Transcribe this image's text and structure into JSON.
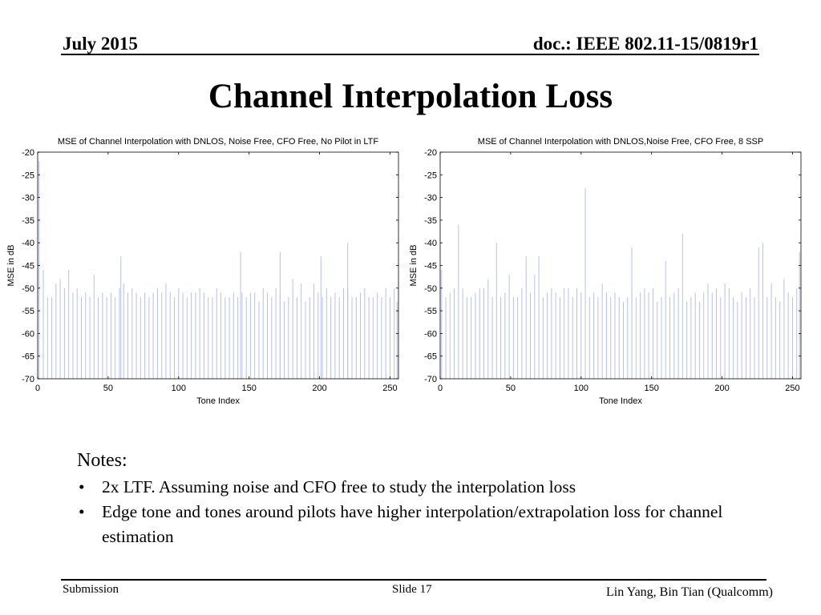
{
  "header": {
    "date": "July 2015",
    "doc": "doc.: IEEE 802.11-15/0819r1"
  },
  "title": "Channel Interpolation Loss",
  "notes": {
    "heading": "Notes:",
    "bullets": [
      "2x LTF.  Assuming noise and CFO free to study the interpolation loss",
      "Edge tone and tones around pilots have higher interpolation/extrapolation loss for channel estimation"
    ]
  },
  "footer": {
    "left": "Submission",
    "center": "Slide 17",
    "right": "Lin Yang, Bin Tian (Qualcomm)"
  },
  "chart_data": [
    {
      "type": "line",
      "title": "MSE of Channel Interpolation with DNLOS, Noise Free, CFO Free, No Pilot in LTF",
      "xlabel": "Tone Index",
      "ylabel": "MSE in dB",
      "xlim": [
        0,
        256
      ],
      "ylim": [
        -70,
        -20
      ],
      "xticks": [
        0,
        50,
        100,
        150,
        200,
        250
      ],
      "yticks": [
        -20,
        -25,
        -30,
        -35,
        -40,
        -45,
        -50,
        -55,
        -60,
        -65,
        -70
      ],
      "line_color": "#b8bff0",
      "baseline": -70,
      "series": [
        {
          "x": [
            1,
            4,
            7,
            10,
            13,
            16,
            19,
            22,
            25,
            28,
            31,
            34,
            37,
            40,
            43,
            46,
            49,
            52,
            55,
            58,
            61,
            64,
            67,
            70,
            73,
            76,
            79,
            82,
            85,
            88,
            91,
            94,
            97,
            100,
            103,
            106,
            109,
            112,
            115,
            118,
            121,
            124,
            127,
            130,
            133,
            136,
            139,
            142,
            145,
            148,
            151,
            154,
            157,
            160,
            163,
            166,
            169,
            172,
            175,
            178,
            181,
            184,
            187,
            190,
            193,
            196,
            199,
            202,
            205,
            208,
            211,
            214,
            217,
            220,
            223,
            226,
            229,
            232,
            235,
            238,
            241,
            244,
            247,
            250,
            253,
            255
          ],
          "y": [
            -22,
            -46,
            -52,
            -52,
            -49,
            -48,
            -50,
            -46,
            -51,
            -50,
            -52,
            -51,
            -52,
            -47,
            -52,
            -51,
            -52,
            -51,
            -52,
            -50,
            -49,
            -51,
            -50,
            -51,
            -52,
            -51,
            -52,
            -51,
            -50,
            -51,
            -49,
            -51,
            -52,
            -50,
            -51,
            -52,
            -51,
            -51,
            -50,
            -51,
            -52,
            -52,
            -50,
            -51,
            -52,
            -52,
            -51,
            -52,
            -51,
            -52,
            -51,
            -51,
            -53,
            -50,
            -51,
            -52,
            -50,
            -51,
            -53,
            -52,
            -48,
            -52,
            -49,
            -53,
            -52,
            -49,
            -51,
            -52,
            -50,
            -52,
            -51,
            -52,
            -50,
            -50,
            -52,
            -52,
            -51,
            -50,
            -52,
            -52,
            -51,
            -52,
            -50,
            -52,
            -50,
            -53
          ]
        }
      ],
      "spikes": [
        {
          "x": 59,
          "y": -43
        },
        {
          "x": 144,
          "y": -42
        },
        {
          "x": 172,
          "y": -42
        },
        {
          "x": 201,
          "y": -43
        },
        {
          "x": 220,
          "y": -40
        }
      ]
    },
    {
      "type": "line",
      "title": "MSE of Channel Interpolation with DNLOS,Noise Free, CFO Free, 8 SSP",
      "xlabel": "Tone Index",
      "ylabel": "MSE in dB",
      "xlim": [
        0,
        256
      ],
      "ylim": [
        -70,
        -20
      ],
      "xticks": [
        0,
        50,
        100,
        150,
        200,
        250
      ],
      "yticks": [
        -20,
        -25,
        -30,
        -35,
        -40,
        -45,
        -50,
        -55,
        -60,
        -65,
        -70
      ],
      "line_color": "#b8bff0",
      "baseline": -70,
      "series": [
        {
          "x": [
            1,
            4,
            7,
            10,
            13,
            16,
            19,
            22,
            25,
            28,
            31,
            34,
            37,
            40,
            43,
            46,
            49,
            52,
            55,
            58,
            61,
            64,
            67,
            70,
            73,
            76,
            79,
            82,
            85,
            88,
            91,
            94,
            97,
            100,
            103,
            106,
            109,
            112,
            115,
            118,
            121,
            124,
            127,
            130,
            133,
            136,
            139,
            142,
            145,
            148,
            151,
            154,
            157,
            160,
            163,
            166,
            169,
            172,
            175,
            178,
            181,
            184,
            187,
            190,
            193,
            196,
            199,
            202,
            205,
            208,
            211,
            214,
            217,
            220,
            223,
            226,
            229,
            232,
            235,
            238,
            241,
            244,
            247,
            250,
            253,
            255
          ],
          "y": [
            -46,
            -52,
            -51,
            -50,
            -36,
            -50,
            -52,
            -52,
            -51,
            -50,
            -50,
            -48,
            -52,
            -40,
            -52,
            -51,
            -47,
            -52,
            -52,
            -50,
            -43,
            -51,
            -47,
            -43,
            -52,
            -51,
            -50,
            -51,
            -52,
            -50,
            -50,
            -52,
            -50,
            -51,
            -28,
            -52,
            -51,
            -52,
            -49,
            -51,
            -52,
            -51,
            -52,
            -53,
            -52,
            -41,
            -52,
            -51,
            -50,
            -51,
            -50,
            -53,
            -52,
            -44,
            -52,
            -51,
            -50,
            -38,
            -53,
            -52,
            -51,
            -53,
            -51,
            -49,
            -51,
            -50,
            -52,
            -49,
            -50,
            -52,
            -53,
            -51,
            -52,
            -50,
            -52,
            -41,
            -40,
            -52,
            -49,
            -52,
            -53,
            -48,
            -51,
            -52,
            -50,
            -42
          ]
        }
      ],
      "spikes": []
    }
  ]
}
